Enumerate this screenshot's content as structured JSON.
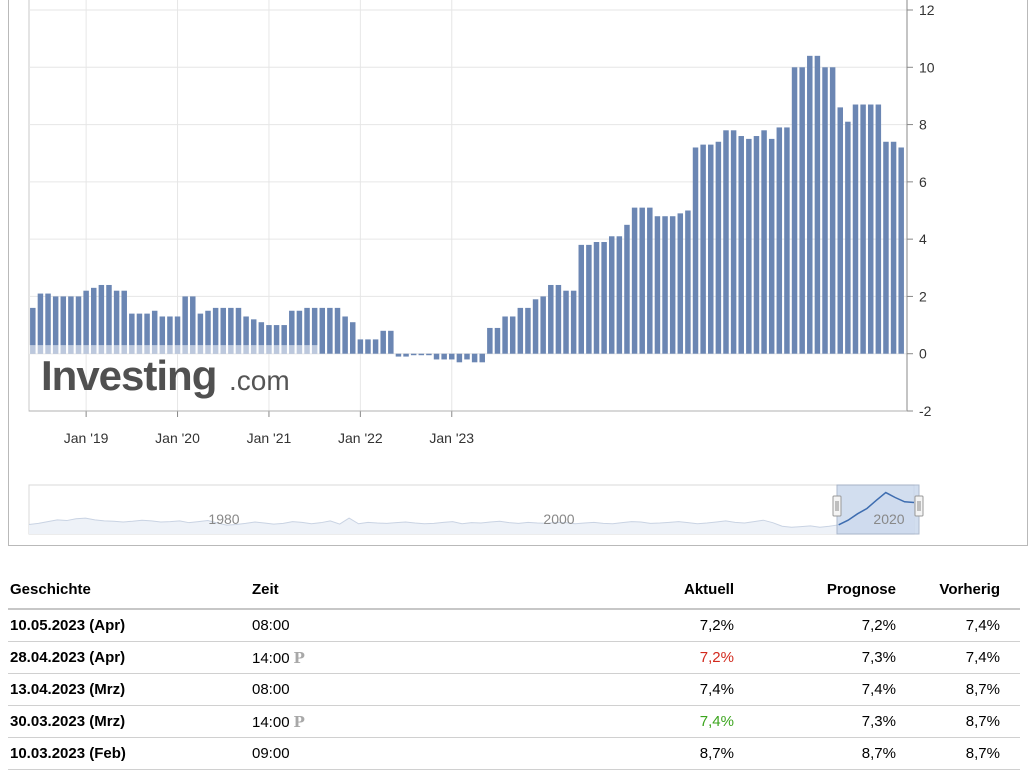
{
  "chart_data": {
    "type": "bar",
    "watermark": {
      "brand": "Investing",
      "suffix": ".com"
    },
    "ylim": [
      -2,
      12
    ],
    "y_ticks": [
      "-2",
      "0",
      "2",
      "4",
      "6",
      "8",
      "10",
      "12"
    ],
    "x_ticks": [
      "Jan '19",
      "Jan '20",
      "Jan '21",
      "Jan '22",
      "Jan '23"
    ],
    "bar_color": "#6b86b3",
    "baseline_band_value": 0.3,
    "values": [
      1.6,
      2.1,
      2.1,
      2.0,
      2.0,
      2.0,
      2.0,
      2.2,
      2.3,
      2.4,
      2.4,
      2.2,
      2.2,
      1.4,
      1.4,
      1.4,
      1.5,
      1.3,
      1.3,
      1.3,
      2.0,
      2.0,
      1.4,
      1.5,
      1.6,
      1.6,
      1.6,
      1.6,
      1.3,
      1.2,
      1.1,
      1.0,
      1.0,
      1.0,
      1.5,
      1.5,
      1.6,
      1.6,
      1.6,
      1.6,
      1.6,
      1.3,
      1.1,
      0.5,
      0.5,
      0.5,
      0.8,
      0.8,
      -0.1,
      -0.1,
      0.0,
      0.0,
      0.0,
      -0.2,
      -0.2,
      -0.2,
      -0.3,
      -0.2,
      -0.3,
      -0.3,
      0.9,
      0.9,
      1.3,
      1.3,
      1.6,
      1.6,
      1.9,
      2.0,
      2.4,
      2.4,
      2.2,
      2.2,
      3.8,
      3.8,
      3.9,
      3.9,
      4.1,
      4.1,
      4.5,
      5.1,
      5.1,
      5.1,
      4.8,
      4.8,
      4.8,
      4.9,
      5.0,
      7.2,
      7.3,
      7.3,
      7.4,
      7.8,
      7.8,
      7.6,
      7.5,
      7.6,
      7.8,
      7.5,
      7.9,
      7.9,
      10.0,
      10.0,
      10.4,
      10.4,
      10.0,
      10.0,
      8.6,
      8.1,
      8.7,
      8.7,
      8.7,
      8.7,
      7.4,
      7.4,
      7.2
    ],
    "navigator": {
      "labels": [
        "1980",
        "2000",
        "2020"
      ],
      "series": [
        1.0,
        1.3,
        1.8,
        2.3,
        2.1,
        2.6,
        2.8,
        2.3,
        2.0,
        1.9,
        1.7,
        1.9,
        2.2,
        2.0,
        1.7,
        1.8,
        2.0,
        1.5,
        1.8,
        2.1,
        1.4,
        0.8,
        1.0,
        1.3,
        1.7,
        1.4,
        1.1,
        1.3,
        1.8,
        1.6,
        1.2,
        1.5,
        2.0,
        1.1,
        2.8,
        1.2,
        1.6,
        1.4,
        1.3,
        1.5,
        1.7,
        1.4,
        1.2,
        1.3,
        1.6,
        1.8,
        1.2,
        1.5,
        1.4,
        1.7,
        1.9,
        1.5,
        1.3,
        1.6,
        1.4,
        1.3,
        1.6,
        1.5,
        1.2,
        1.4,
        1.6,
        1.3,
        1.2,
        1.5,
        1.8,
        1.7,
        1.3,
        1.4,
        1.6,
        1.8,
        1.5,
        1.2,
        1.4,
        1.7,
        2.0,
        1.6,
        1.4,
        1.8,
        2.2,
        1.5,
        0.5,
        0.2,
        0.4,
        0.6,
        0.2,
        0.5,
        0.9,
        2.2,
        4.0,
        5.5,
        7.8,
        10.0,
        8.6,
        7.4,
        7.2
      ]
    }
  },
  "table": {
    "headers": {
      "history": "Geschichte",
      "time": "Zeit",
      "actual": "Aktuell",
      "forecast": "Prognose",
      "previous": "Vorherig"
    },
    "rows": [
      {
        "date": "10.05.2023 (Apr)",
        "time": "08:00",
        "prelim": false,
        "actual": "7,2%",
        "actual_color": "#000000",
        "forecast": "7,2%",
        "previous": "7,4%"
      },
      {
        "date": "28.04.2023 (Apr)",
        "time": "14:00",
        "prelim": true,
        "actual": "7,2%",
        "actual_color": "#d22a1e",
        "forecast": "7,3%",
        "previous": "7,4%"
      },
      {
        "date": "13.04.2023 (Mrz)",
        "time": "08:00",
        "prelim": false,
        "actual": "7,4%",
        "actual_color": "#000000",
        "forecast": "7,4%",
        "previous": "8,7%"
      },
      {
        "date": "30.03.2023 (Mrz)",
        "time": "14:00",
        "prelim": true,
        "actual": "7,4%",
        "actual_color": "#3ca51e",
        "forecast": "7,3%",
        "previous": "8,7%"
      },
      {
        "date": "10.03.2023 (Feb)",
        "time": "09:00",
        "prelim": false,
        "actual": "8,7%",
        "actual_color": "#000000",
        "forecast": "8,7%",
        "previous": "8,7%"
      }
    ],
    "prelim_icon": "P"
  }
}
